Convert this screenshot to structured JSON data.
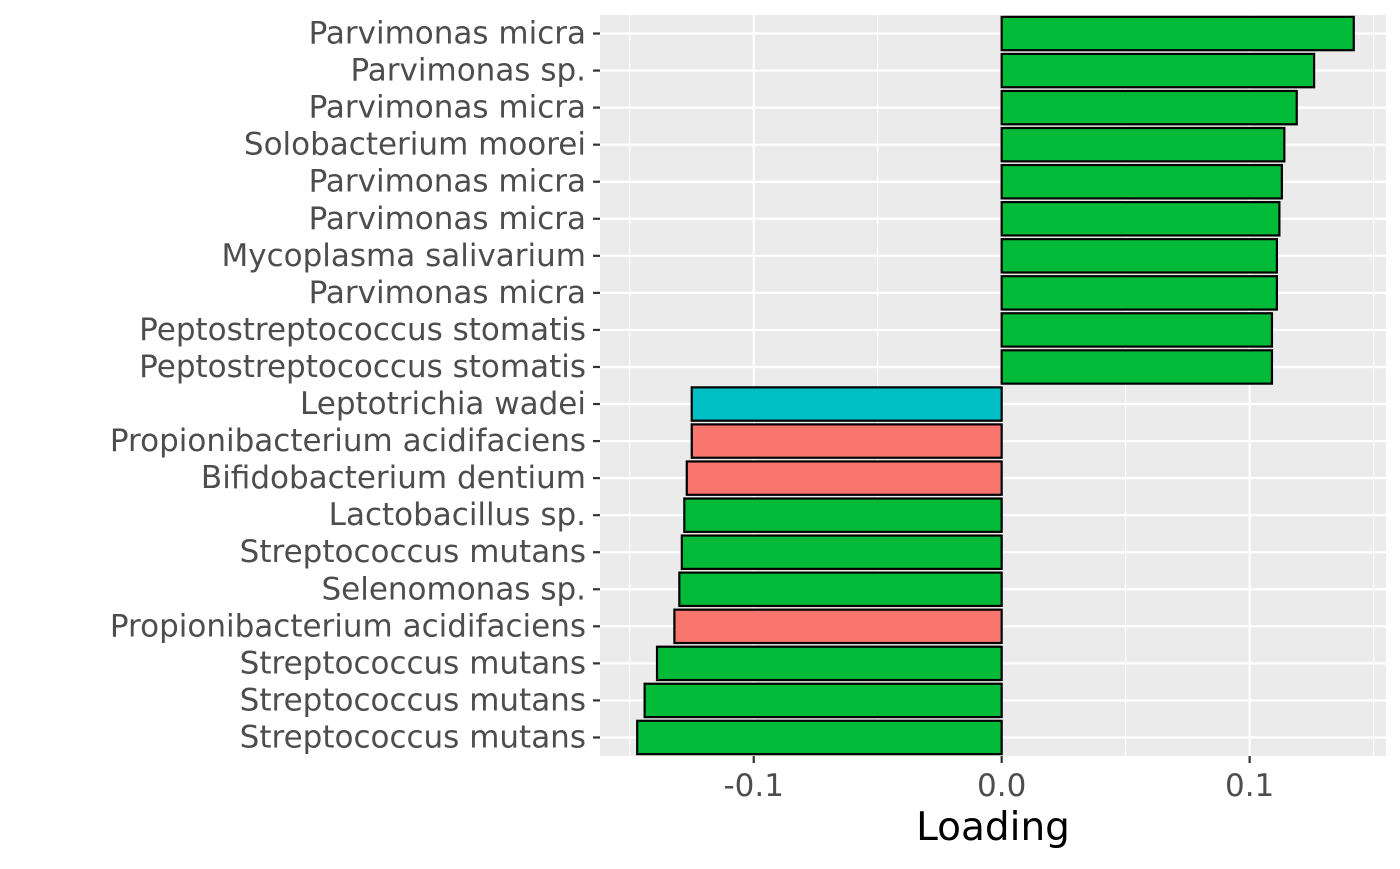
{
  "chart_data": {
    "type": "bar",
    "orientation": "horizontal",
    "xlabel": "Loading",
    "ylabel": "",
    "xlim": [
      -0.162,
      0.155
    ],
    "x_ticks": [
      -0.1,
      0.0,
      0.1
    ],
    "x_tick_labels": [
      "-0.1",
      "0.0",
      "0.1"
    ],
    "x_minor_ticks": [
      -0.15,
      -0.05,
      0.05,
      0.15
    ],
    "grid": true,
    "legend": "none",
    "panel_background": "#EBEBEB",
    "grid_color": "#FFFFFF",
    "bar_outline_color": "#000000",
    "tick_label_color": "#4D4D4D",
    "axis_title_color": "#000000",
    "categories": [
      "Parvimonas micra",
      "Parvimonas sp.",
      "Parvimonas micra",
      "Solobacterium moorei",
      "Parvimonas micra",
      "Parvimonas micra",
      "Mycoplasma salivarium",
      "Parvimonas micra",
      "Peptostreptococcus stomatis",
      "Peptostreptococcus stomatis",
      "Leptotrichia wadei",
      "Propionibacterium acidifaciens",
      "Bifidobacterium dentium",
      "Lactobacillus sp.",
      "Streptococcus mutans",
      "Selenomonas sp.",
      "Propionibacterium acidifaciens",
      "Streptococcus mutans",
      "Streptococcus mutans",
      "Streptococcus mutans"
    ],
    "values": [
      0.142,
      0.126,
      0.119,
      0.114,
      0.113,
      0.112,
      0.111,
      0.111,
      0.109,
      0.109,
      -0.125,
      -0.125,
      -0.127,
      -0.128,
      -0.129,
      -0.13,
      -0.132,
      -0.139,
      -0.144,
      -0.147
    ],
    "bar_colors": [
      "#00BA38",
      "#00BA38",
      "#00BA38",
      "#00BA38",
      "#00BA38",
      "#00BA38",
      "#00BA38",
      "#00BA38",
      "#00BA38",
      "#00BA38",
      "#00BFC4",
      "#F8766D",
      "#F8766D",
      "#00BA38",
      "#00BA38",
      "#00BA38",
      "#F8766D",
      "#00BA38",
      "#00BA38",
      "#00BA38"
    ]
  }
}
